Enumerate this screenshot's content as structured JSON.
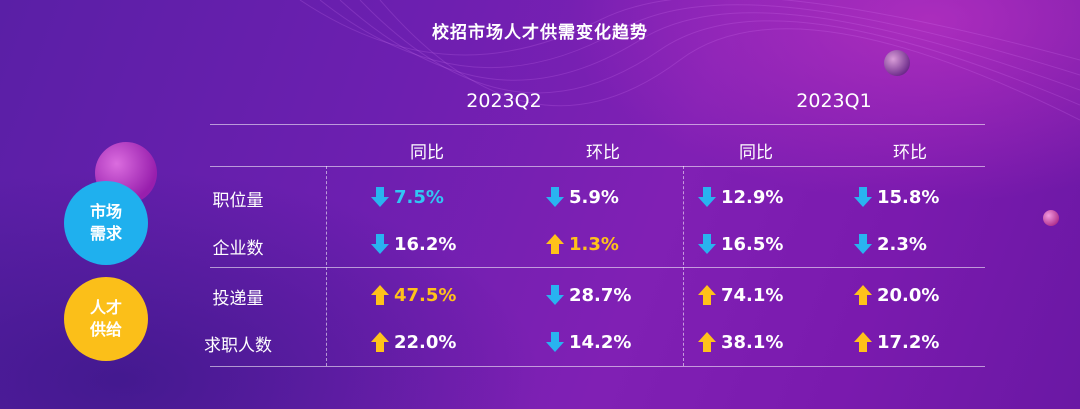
{
  "title": "校招市场人才供需变化趋势",
  "periods": [
    "2023Q2",
    "2023Q1"
  ],
  "subheaders": [
    "同比",
    "环比",
    "同比",
    "环比"
  ],
  "groups": [
    {
      "label_line1": "市场",
      "label_line2": "需求",
      "color": "#1fb0ee"
    },
    {
      "label_line1": "人才",
      "label_line2": "供给",
      "color": "#fbbf19"
    }
  ],
  "rows": [
    {
      "label": "职位量",
      "cells": [
        {
          "value": "7.5%",
          "direction": "down",
          "highlight": "blue"
        },
        {
          "value": "5.9%",
          "direction": "down",
          "highlight": ""
        },
        {
          "value": "12.9%",
          "direction": "down",
          "highlight": ""
        },
        {
          "value": "15.8%",
          "direction": "down",
          "highlight": ""
        }
      ]
    },
    {
      "label": "企业数",
      "cells": [
        {
          "value": "16.2%",
          "direction": "down",
          "highlight": ""
        },
        {
          "value": "1.3%",
          "direction": "up",
          "highlight": "gold"
        },
        {
          "value": "16.5%",
          "direction": "down",
          "highlight": ""
        },
        {
          "value": "2.3%",
          "direction": "down",
          "highlight": ""
        }
      ]
    },
    {
      "label": "投递量",
      "cells": [
        {
          "value": "47.5%",
          "direction": "up",
          "highlight": "gold"
        },
        {
          "value": "28.7%",
          "direction": "down",
          "highlight": ""
        },
        {
          "value": "74.1%",
          "direction": "up",
          "highlight": ""
        },
        {
          "value": "20.0%",
          "direction": "up",
          "highlight": ""
        }
      ]
    },
    {
      "label": "求职人数",
      "cells": [
        {
          "value": "22.0%",
          "direction": "up",
          "highlight": ""
        },
        {
          "value": "14.2%",
          "direction": "down",
          "highlight": ""
        },
        {
          "value": "38.1%",
          "direction": "up",
          "highlight": ""
        },
        {
          "value": "17.2%",
          "direction": "up",
          "highlight": ""
        }
      ]
    }
  ],
  "colors": {
    "down_arrow": "#29b3f0",
    "up_arrow": "#ffc21a"
  },
  "icons": {
    "down": "arrow-down-icon",
    "up": "arrow-up-icon"
  }
}
